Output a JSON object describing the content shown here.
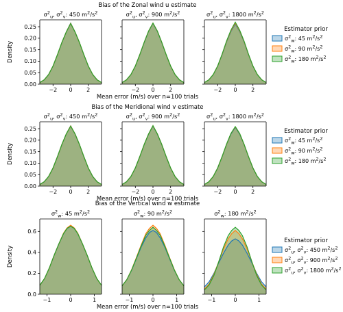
{
  "colors": {
    "blue": "#1f77b4",
    "orange": "#ff7f0e",
    "green": "#2ca02c",
    "overlap": "#9aab8e"
  },
  "chart_data": [
    {
      "type": "area",
      "title": "Bias of the Zonal wind u estimate",
      "xlabel": "Mean error (m/s) over n=100 trials",
      "ylabel": "Density",
      "xlim": [
        -3.5,
        3.5
      ],
      "ylim": [
        0,
        0.28
      ],
      "xticks": [
        -2,
        0,
        2
      ],
      "yticks": [
        0.0,
        0.05,
        0.1,
        0.15,
        0.2,
        0.25
      ],
      "ytick_labels": [
        "0.00",
        "0.05",
        "0.10",
        "0.15",
        "0.20",
        "0.25"
      ],
      "panel_titles": [
        "σ²_u, σ²_v: 450 m²/s²",
        "σ²_u, σ²_v: 900 m²/s²",
        "σ²_u, σ²_v: 1800 m²/s²"
      ],
      "legend": {
        "title": "Estimator prior",
        "placement": "right",
        "entries": [
          "σ²_w: 45 m²/s²",
          "σ²_w: 90 m²/s²",
          "σ²_w: 180 m²/s²"
        ]
      },
      "x": [
        -3.5,
        -3,
        -2.5,
        -2,
        -1.5,
        -1,
        -0.5,
        0,
        0.5,
        1,
        1.5,
        2,
        2.5,
        3,
        3.5
      ],
      "panels": [
        {
          "series": [
            {
              "name": "σ²_w: 45 m²/s²",
              "values": [
                0.007,
                0.019,
                0.042,
                0.079,
                0.128,
                0.181,
                0.227,
                0.266,
                0.227,
                0.181,
                0.128,
                0.079,
                0.042,
                0.019,
                0.007
              ]
            },
            {
              "name": "σ²_w: 90 m²/s²",
              "values": [
                0.007,
                0.019,
                0.042,
                0.079,
                0.128,
                0.181,
                0.227,
                0.265,
                0.227,
                0.181,
                0.128,
                0.079,
                0.042,
                0.019,
                0.007
              ]
            },
            {
              "name": "σ²_w: 180 m²/s²",
              "values": [
                0.007,
                0.019,
                0.042,
                0.079,
                0.128,
                0.181,
                0.227,
                0.264,
                0.227,
                0.181,
                0.128,
                0.079,
                0.042,
                0.019,
                0.007
              ]
            }
          ]
        },
        {
          "series": [
            {
              "name": "σ²_w: 45 m²/s²",
              "values": [
                0.007,
                0.019,
                0.042,
                0.079,
                0.128,
                0.181,
                0.23,
                0.265,
                0.23,
                0.181,
                0.128,
                0.079,
                0.042,
                0.019,
                0.007
              ]
            },
            {
              "name": "σ²_w: 90 m²/s²",
              "values": [
                0.007,
                0.019,
                0.042,
                0.079,
                0.128,
                0.182,
                0.231,
                0.266,
                0.231,
                0.182,
                0.128,
                0.079,
                0.042,
                0.019,
                0.007
              ]
            },
            {
              "name": "σ²_w: 180 m²/s²",
              "values": [
                0.007,
                0.019,
                0.042,
                0.079,
                0.128,
                0.182,
                0.231,
                0.266,
                0.231,
                0.182,
                0.128,
                0.079,
                0.042,
                0.019,
                0.007
              ]
            }
          ]
        },
        {
          "series": [
            {
              "name": "σ²_w: 45 m²/s²",
              "values": [
                0.007,
                0.019,
                0.042,
                0.079,
                0.128,
                0.183,
                0.229,
                0.262,
                0.229,
                0.183,
                0.128,
                0.079,
                0.042,
                0.019,
                0.007
              ]
            },
            {
              "name": "σ²_w: 90 m²/s²",
              "values": [
                0.007,
                0.019,
                0.042,
                0.079,
                0.129,
                0.185,
                0.232,
                0.266,
                0.232,
                0.185,
                0.129,
                0.079,
                0.042,
                0.019,
                0.007
              ]
            },
            {
              "name": "σ²_w: 180 m²/s²",
              "values": [
                0.007,
                0.019,
                0.042,
                0.079,
                0.13,
                0.187,
                0.235,
                0.27,
                0.235,
                0.187,
                0.13,
                0.079,
                0.042,
                0.019,
                0.007
              ]
            }
          ]
        }
      ]
    },
    {
      "type": "area",
      "title": "Bias of the Meridional wind v estimate",
      "xlabel": "Mean error (m/s) over n=100 trials",
      "ylabel": "Density",
      "xlim": [
        -3.5,
        3.5
      ],
      "ylim": [
        0,
        0.28
      ],
      "xticks": [
        -2,
        0,
        2
      ],
      "yticks": [
        0.0,
        0.05,
        0.1,
        0.15,
        0.2,
        0.25
      ],
      "ytick_labels": [
        "0.00",
        "0.05",
        "0.10",
        "0.15",
        "0.20",
        "0.25"
      ],
      "panel_titles": [
        "σ²_u, σ²_v: 450 m²/s²",
        "σ²_u, σ²_v: 900 m²/s²",
        "σ²_u, σ²_v: 1800 m²/s²"
      ],
      "legend": {
        "title": "Estimator prior",
        "placement": "right",
        "entries": [
          "σ²_w: 45 m²/s²",
          "σ²_w: 90 m²/s²",
          "σ²_w: 180 m²/s²"
        ]
      },
      "x": [
        -3.5,
        -3,
        -2.5,
        -2,
        -1.5,
        -1,
        -0.5,
        0,
        0.5,
        1,
        1.5,
        2,
        2.5,
        3,
        3.5
      ],
      "panels": [
        {
          "series": [
            {
              "name": "σ²_w: 45 m²/s²",
              "values": [
                0.007,
                0.019,
                0.042,
                0.079,
                0.128,
                0.181,
                0.227,
                0.262,
                0.227,
                0.181,
                0.128,
                0.079,
                0.042,
                0.019,
                0.007
              ]
            },
            {
              "name": "σ²_w: 90 m²/s²",
              "values": [
                0.007,
                0.019,
                0.042,
                0.079,
                0.128,
                0.181,
                0.227,
                0.262,
                0.227,
                0.181,
                0.128,
                0.079,
                0.042,
                0.019,
                0.007
              ]
            },
            {
              "name": "σ²_w: 180 m²/s²",
              "values": [
                0.007,
                0.019,
                0.042,
                0.079,
                0.128,
                0.181,
                0.227,
                0.261,
                0.227,
                0.181,
                0.128,
                0.079,
                0.042,
                0.019,
                0.007
              ]
            }
          ]
        },
        {
          "series": [
            {
              "name": "σ²_w: 45 m²/s²",
              "values": [
                0.007,
                0.019,
                0.042,
                0.079,
                0.128,
                0.18,
                0.226,
                0.262,
                0.226,
                0.18,
                0.128,
                0.079,
                0.042,
                0.019,
                0.007
              ]
            },
            {
              "name": "σ²_w: 90 m²/s²",
              "values": [
                0.007,
                0.019,
                0.042,
                0.079,
                0.128,
                0.181,
                0.227,
                0.263,
                0.227,
                0.181,
                0.128,
                0.079,
                0.042,
                0.019,
                0.007
              ]
            },
            {
              "name": "σ²_w: 180 m²/s²",
              "values": [
                0.007,
                0.019,
                0.042,
                0.079,
                0.128,
                0.181,
                0.227,
                0.263,
                0.227,
                0.181,
                0.128,
                0.079,
                0.042,
                0.019,
                0.007
              ]
            }
          ]
        },
        {
          "series": [
            {
              "name": "σ²_w: 45 m²/s²",
              "values": [
                0.007,
                0.019,
                0.042,
                0.079,
                0.128,
                0.18,
                0.226,
                0.256,
                0.226,
                0.18,
                0.128,
                0.079,
                0.042,
                0.019,
                0.007
              ]
            },
            {
              "name": "σ²_w: 90 m²/s²",
              "values": [
                0.007,
                0.019,
                0.042,
                0.079,
                0.128,
                0.181,
                0.228,
                0.258,
                0.228,
                0.181,
                0.128,
                0.079,
                0.042,
                0.019,
                0.007
              ]
            },
            {
              "name": "σ²_w: 180 m²/s²",
              "values": [
                0.007,
                0.019,
                0.042,
                0.079,
                0.128,
                0.182,
                0.229,
                0.259,
                0.229,
                0.182,
                0.128,
                0.079,
                0.042,
                0.019,
                0.007
              ]
            }
          ]
        }
      ]
    },
    {
      "type": "area",
      "title": "Bias of the Vertical wind w estimate",
      "xlabel": "Mean error (m/s) over n=100 trials",
      "ylabel": "Density",
      "xlim": [
        -1.3,
        1.3
      ],
      "ylim": [
        0,
        0.72
      ],
      "xticks": [
        -1,
        0,
        1
      ],
      "yticks": [
        0.0,
        0.2,
        0.4,
        0.6
      ],
      "ytick_labels": [
        "0.0",
        "0.2",
        "0.4",
        "0.6"
      ],
      "panel_titles": [
        "σ²_w: 45 m²/s²",
        "σ²_w: 90 m²/s²",
        "σ²_w: 180 m²/s²"
      ],
      "legend": {
        "title": "Estimator prior",
        "placement": "right",
        "entries": [
          "σ²_u, σ²_v: 450 m²/s²",
          "σ²_u, σ²_v: 900 m²/s²",
          "σ²_u, σ²_v: 1800 m²/s²"
        ]
      },
      "x": [
        -1.3,
        -1.1,
        -0.9,
        -0.7,
        -0.5,
        -0.3,
        -0.15,
        0,
        0.15,
        0.3,
        0.5,
        0.7,
        0.9,
        1.1,
        1.3
      ],
      "panels": [
        {
          "series": [
            {
              "name": "σ²_u, σ²_v: 450 m²/s²",
              "values": [
                0.085,
                0.15,
                0.25,
                0.37,
                0.48,
                0.58,
                0.63,
                0.65,
                0.63,
                0.58,
                0.48,
                0.37,
                0.25,
                0.15,
                0.085
              ]
            },
            {
              "name": "σ²_u, σ²_v: 900 m²/s²",
              "values": [
                0.085,
                0.15,
                0.25,
                0.37,
                0.48,
                0.585,
                0.635,
                0.66,
                0.635,
                0.585,
                0.48,
                0.37,
                0.25,
                0.15,
                0.085
              ]
            },
            {
              "name": "σ²_u, σ²_v: 1800 m²/s²",
              "values": [
                0.085,
                0.15,
                0.25,
                0.37,
                0.48,
                0.58,
                0.63,
                0.65,
                0.63,
                0.58,
                0.48,
                0.37,
                0.25,
                0.15,
                0.085
              ]
            }
          ]
        },
        {
          "series": [
            {
              "name": "σ²_u, σ²_v: 450 m²/s²",
              "values": [
                0.08,
                0.14,
                0.23,
                0.34,
                0.45,
                0.54,
                0.59,
                0.61,
                0.59,
                0.54,
                0.45,
                0.34,
                0.23,
                0.14,
                0.08
              ]
            },
            {
              "name": "σ²_u, σ²_v: 900 m²/s²",
              "values": [
                0.08,
                0.14,
                0.235,
                0.35,
                0.47,
                0.58,
                0.63,
                0.66,
                0.63,
                0.58,
                0.47,
                0.35,
                0.235,
                0.14,
                0.08
              ]
            },
            {
              "name": "σ²_u, σ²_v: 1800 m²/s²",
              "values": [
                0.08,
                0.14,
                0.232,
                0.345,
                0.46,
                0.565,
                0.61,
                0.64,
                0.61,
                0.565,
                0.46,
                0.345,
                0.232,
                0.14,
                0.08
              ]
            }
          ]
        },
        {
          "series": [
            {
              "name": "σ²_u, σ²_v: 450 m²/s²",
              "values": [
                0.07,
                0.12,
                0.2,
                0.3,
                0.39,
                0.47,
                0.51,
                0.53,
                0.51,
                0.47,
                0.39,
                0.3,
                0.2,
                0.12,
                0.07
              ]
            },
            {
              "name": "σ²_u, σ²_v: 900 m²/s²",
              "values": [
                0.05,
                0.1,
                0.19,
                0.31,
                0.43,
                0.53,
                0.58,
                0.61,
                0.58,
                0.53,
                0.43,
                0.31,
                0.19,
                0.1,
                0.05
              ]
            },
            {
              "name": "σ²_u, σ²_v: 1800 m²/s²",
              "values": [
                0.04,
                0.09,
                0.18,
                0.31,
                0.45,
                0.56,
                0.61,
                0.64,
                0.61,
                0.56,
                0.45,
                0.31,
                0.18,
                0.09,
                0.04
              ]
            }
          ]
        }
      ]
    }
  ]
}
